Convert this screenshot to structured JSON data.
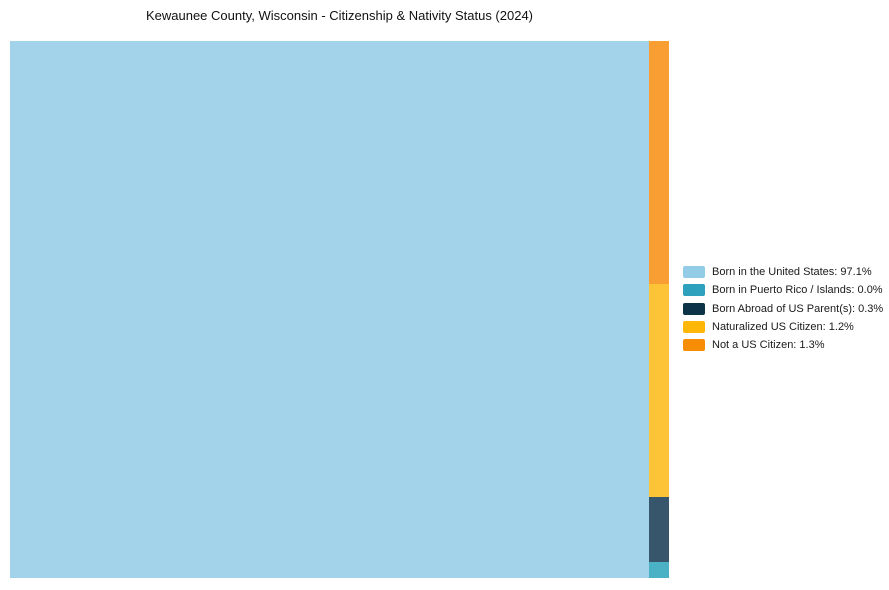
{
  "title": "Kewaunee County, Wisconsin - Citizenship & Nativity Status (2024)",
  "colors": {
    "background": "#ffffff",
    "title_text": "#111111",
    "legend_text": "#1a1a1a"
  },
  "legend": {
    "items": [
      {
        "label": "Born in the United States: 97.1%",
        "color": "#92cce6"
      },
      {
        "label": "Born in Puerto Rico / Islands: 0.0%",
        "color": "#2da0bd"
      },
      {
        "label": "Born Abroad of US Parent(s): 0.3%",
        "color": "#0d3349"
      },
      {
        "label": "Naturalized US Citizen: 1.2%",
        "color": "#feb607"
      },
      {
        "label": "Not a US Citizen: 1.3%",
        "color": "#f78d05"
      }
    ]
  },
  "chart_data": {
    "type": "treemap",
    "title": "Kewaunee County, Wisconsin - Citizenship & Nativity Status (2024)",
    "legend_position": "right",
    "grid": false,
    "items": [
      {
        "label": "Born in the United States",
        "value_pct": 97.1,
        "legend_color": "#92cce6",
        "tile_color": "#a3d3ea"
      },
      {
        "label": "Born in Puerto Rico / Islands",
        "value_pct": 0.0,
        "legend_color": "#2da0bd",
        "tile_color": "#4bb1c4"
      },
      {
        "label": "Born Abroad of US Parent(s)",
        "value_pct": 0.3,
        "legend_color": "#0d3349",
        "tile_color": "#37566b"
      },
      {
        "label": "Naturalized US Citizen",
        "value_pct": 1.2,
        "legend_color": "#feb607",
        "tile_color": "#fdc437"
      },
      {
        "label": "Not a US Citizen",
        "value_pct": 1.3,
        "legend_color": "#f78d05",
        "tile_color": "#f89e33"
      }
    ]
  }
}
